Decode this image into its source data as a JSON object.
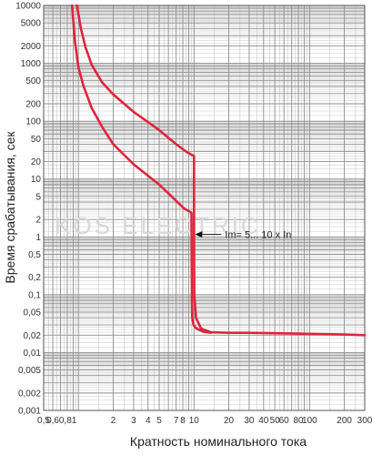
{
  "chart_data": {
    "type": "line",
    "xlabel": "Кратность номинального тока",
    "ylabel": "Время срабатывания, сек",
    "xscale": "log",
    "yscale": "log",
    "xlim": [
      0.5,
      300
    ],
    "ylim": [
      0.001,
      10000
    ],
    "grid": true,
    "x_tick_labels": [
      {
        "v": 0.5,
        "t": "0,5"
      },
      {
        "v": 0.6,
        "t": "0,6"
      },
      {
        "v": 0.81,
        "t": "0,81"
      },
      {
        "v": 2,
        "t": "2"
      },
      {
        "v": 3,
        "t": "3"
      },
      {
        "v": 4,
        "t": "4"
      },
      {
        "v": 5,
        "t": "5"
      },
      {
        "v": 7,
        "t": "7"
      },
      {
        "v": 8,
        "t": "8"
      },
      {
        "v": 10,
        "t": "10"
      },
      {
        "v": 20,
        "t": "20"
      },
      {
        "v": 30,
        "t": "30"
      },
      {
        "v": 40,
        "t": "40"
      },
      {
        "v": 50,
        "t": "50"
      },
      {
        "v": 60,
        "t": "60"
      },
      {
        "v": 80,
        "t": "80"
      },
      {
        "v": 100,
        "t": "100"
      },
      {
        "v": 200,
        "t": "200"
      },
      {
        "v": 300,
        "t": "300"
      }
    ],
    "y_tick_labels": [
      {
        "v": 10000,
        "t": "10000"
      },
      {
        "v": 5000,
        "t": "5000"
      },
      {
        "v": 2000,
        "t": "2000"
      },
      {
        "v": 1000,
        "t": "1000"
      },
      {
        "v": 500,
        "t": "500"
      },
      {
        "v": 200,
        "t": "200"
      },
      {
        "v": 100,
        "t": "100"
      },
      {
        "v": 50,
        "t": "50"
      },
      {
        "v": 20,
        "t": "20"
      },
      {
        "v": 10,
        "t": "10"
      },
      {
        "v": 5,
        "t": "5"
      },
      {
        "v": 2,
        "t": "2"
      },
      {
        "v": 1,
        "t": "1"
      },
      {
        "v": 0.5,
        "t": "0,5"
      },
      {
        "v": 0.2,
        "t": "0,2"
      },
      {
        "v": 0.1,
        "t": "0,1"
      },
      {
        "v": 0.05,
        "t": "0,05"
      },
      {
        "v": 0.02,
        "t": "0,02"
      },
      {
        "v": 0.01,
        "t": "0,01"
      },
      {
        "v": 0.005,
        "t": "0,005"
      },
      {
        "v": 0.002,
        "t": "0,002"
      },
      {
        "v": 0.001,
        "t": "0,001"
      }
    ],
    "series": [
      {
        "x": [
          0.97,
          1.05,
          1.15,
          1.3,
          1.6,
          2,
          3,
          5,
          7,
          8.5,
          9.6,
          10.0,
          10.0,
          10.05,
          10.4,
          11.5,
          14,
          20,
          30,
          60,
          100,
          200,
          300
        ],
        "y": [
          10000,
          4000,
          1900,
          950,
          470,
          290,
          145,
          70,
          40,
          30,
          26,
          25,
          1.5,
          0.1,
          0.04,
          0.026,
          0.0225,
          0.022,
          0.022,
          0.0215,
          0.021,
          0.0205,
          0.02
        ]
      },
      {
        "x": [
          0.88,
          0.93,
          1.0,
          1.1,
          1.3,
          1.6,
          2,
          3,
          5,
          7,
          8.2,
          8.8,
          9.3,
          9.5,
          9.55,
          9.6,
          9.65,
          9.9,
          10.5,
          12,
          14
        ],
        "y": [
          10000,
          2500,
          850,
          420,
          170,
          80,
          40,
          18,
          8,
          4.2,
          3.1,
          2.85,
          2.7,
          2.6,
          0.5,
          0.08,
          0.04,
          0.03,
          0.026,
          0.023,
          0.022
        ]
      }
    ],
    "colors": {
      "curve": "#e0243c",
      "grid_major": "#8e8e8e",
      "grid_minor": "#bdbdbd",
      "frame": "#555555"
    },
    "annotation": {
      "text": "Im= 5... 10 x In",
      "arrow_target": {
        "x": 10,
        "y": 1.1
      }
    },
    "watermark": "KOS ELECTRIC"
  }
}
